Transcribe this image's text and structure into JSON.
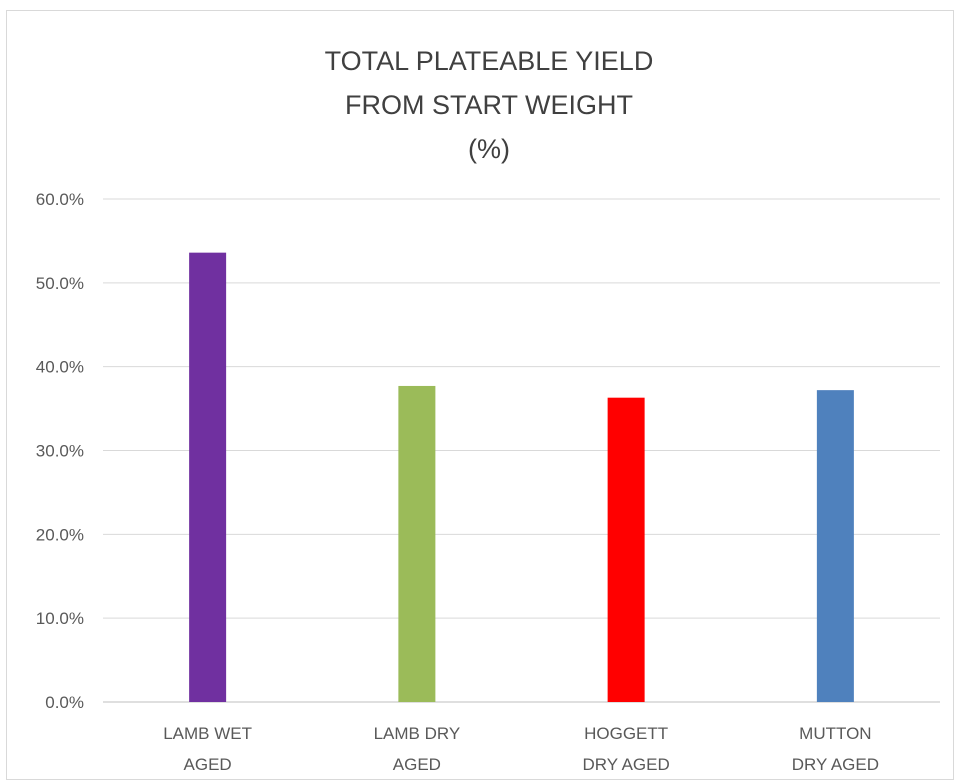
{
  "chart_data": {
    "type": "bar",
    "title_lines": [
      "TOTAL PLATEABLE YIELD",
      "FROM START WEIGHT",
      "(%)"
    ],
    "categories": [
      [
        "LAMB WET",
        "AGED"
      ],
      [
        "LAMB DRY",
        "AGED"
      ],
      [
        "HOGGETT",
        "DRY AGED"
      ],
      [
        "MUTTON",
        "DRY AGED"
      ]
    ],
    "values": [
      53.6,
      37.7,
      36.3,
      37.2
    ],
    "bar_colors": [
      "#7030a0",
      "#9bbb59",
      "#ff0000",
      "#4f81bd"
    ],
    "ylim": [
      0,
      60
    ],
    "y_ticks": [
      0,
      10,
      20,
      30,
      40,
      50,
      60
    ],
    "y_tick_labels": [
      "0.0%",
      "10.0%",
      "20.0%",
      "30.0%",
      "40.0%",
      "50.0%",
      "60.0%"
    ],
    "grid": true,
    "legend": "none",
    "xlabel": "",
    "ylabel": ""
  },
  "colors": {
    "grid": "#d9d9d9",
    "text": "#595959",
    "title": "#404040",
    "axis": "#bfbfbf"
  }
}
